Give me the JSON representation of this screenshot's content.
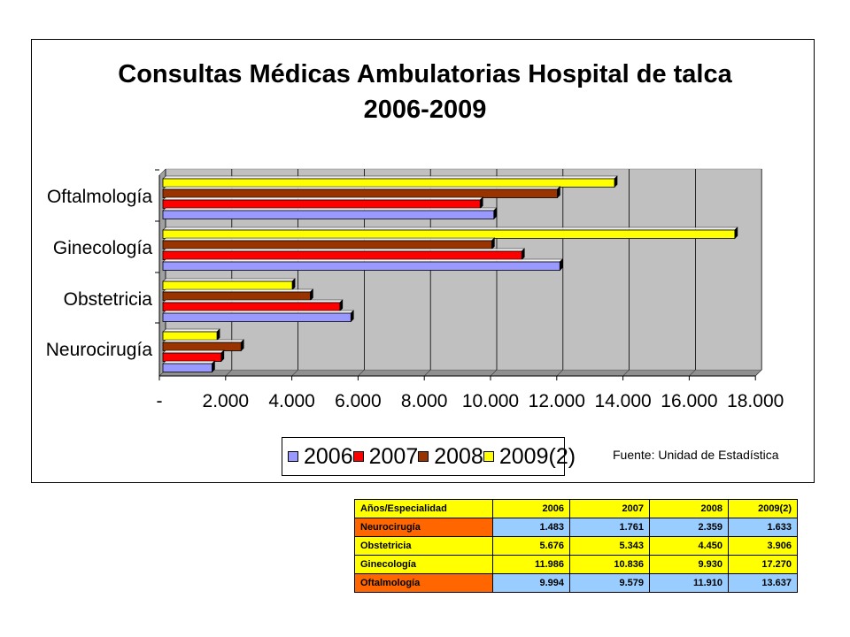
{
  "chart_data": {
    "type": "bar",
    "orientation": "horizontal",
    "title": "Consultas Médicas Ambulatorias Hospital de talca",
    "subtitle": "2006-2009",
    "categories": [
      "Oftalmología",
      "Ginecología",
      "Obstetricia",
      "Neurocirugía"
    ],
    "series": [
      {
        "name": "2006",
        "color": "#9999ff",
        "values": [
          9994,
          11986,
          5676,
          1483
        ]
      },
      {
        "name": "2007",
        "color": "#ff0000",
        "values": [
          9579,
          10836,
          5343,
          1761
        ]
      },
      {
        "name": "2008",
        "color": "#993300",
        "values": [
          11910,
          9930,
          4450,
          2359
        ]
      },
      {
        "name": "2009(2)",
        "color": "#ffff00",
        "values": [
          13637,
          17270,
          3906,
          1633
        ]
      }
    ],
    "xlim": [
      0,
      18000
    ],
    "tick_labels": [
      "-",
      "2.000",
      "4.000",
      "6.000",
      "8.000",
      "10.000",
      "12.000",
      "14.000",
      "16.000",
      "18.000"
    ],
    "grid": true,
    "legend_position": "bottom",
    "plot_background": "#c0c0c0"
  },
  "source_note": "Fuente: Unidad de Estadística",
  "table": {
    "header": [
      "Años/Especialidad",
      "2006",
      "2007",
      "2008",
      "2009(2)"
    ],
    "rows": [
      {
        "label": "Neurocirugía",
        "label_color": "#ff6600",
        "value_color": "#99ccff",
        "values": [
          "1.483",
          "1.761",
          "2.359",
          "1.633"
        ]
      },
      {
        "label": "Obstetricia",
        "label_color": "#ffff00",
        "value_color": "#ffff00",
        "values": [
          "5.676",
          "5.343",
          "4.450",
          "3.906"
        ]
      },
      {
        "label": "Ginecología",
        "label_color": "#ffff00",
        "value_color": "#ffff00",
        "values": [
          "11.986",
          "10.836",
          "9.930",
          "17.270"
        ]
      },
      {
        "label": "Oftalmología",
        "label_color": "#ff6600",
        "value_color": "#99ccff",
        "values": [
          "9.994",
          "9.579",
          "11.910",
          "13.637"
        ]
      }
    ]
  }
}
